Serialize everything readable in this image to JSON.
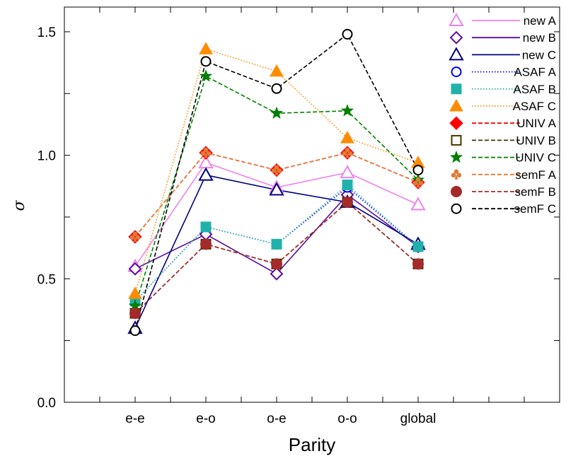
{
  "chart_data": {
    "type": "line",
    "title": "",
    "xlabel": "Parity",
    "ylabel": "σ",
    "categories": [
      "e-e",
      "e-o",
      "o-e",
      "o-o",
      "global"
    ],
    "ylim": [
      0.0,
      1.6
    ],
    "yticks": [
      0.0,
      0.5,
      1.0,
      1.5
    ],
    "ytick_labels": [
      "0.0",
      "0.5",
      "1.0",
      "1.5"
    ],
    "legend_position": "top-right",
    "series": [
      {
        "name": "new A",
        "color": "#ee82ee",
        "dash": "solid",
        "marker": "triangle-open",
        "values": [
          0.55,
          0.97,
          0.87,
          0.93,
          0.8
        ]
      },
      {
        "name": "new B",
        "color": "#5b0d9e",
        "dash": "solid",
        "marker": "diamond-open",
        "values": [
          0.54,
          0.68,
          0.52,
          0.84,
          0.63
        ]
      },
      {
        "name": "new C",
        "color": "#000080",
        "dash": "solid",
        "marker": "triangle-open",
        "values": [
          0.3,
          0.92,
          0.86,
          0.81,
          0.64
        ]
      },
      {
        "name": "ASAF A",
        "color": "#0000ff",
        "dash": "dotted",
        "marker": "circle-open",
        "values": [
          0.41,
          0.71,
          0.64,
          0.87,
          0.63
        ]
      },
      {
        "name": "ASAF B",
        "color": "#20b2aa",
        "dash": "dotted",
        "marker": "square-filled",
        "values": [
          0.41,
          0.71,
          0.64,
          0.88,
          0.63
        ]
      },
      {
        "name": "ASAF C",
        "color": "#ff8c00",
        "dash": "dotted",
        "marker": "triangle-filled",
        "values": [
          0.44,
          1.43,
          1.34,
          1.07,
          0.97
        ]
      },
      {
        "name": "UNIV A",
        "color": "#ff0000",
        "dash": "dashed",
        "marker": "diamond-filled",
        "values": [
          0.67,
          1.01,
          0.94,
          1.01,
          0.89
        ]
      },
      {
        "name": "UNIV B",
        "color": "#4d3300",
        "dash": "dashed",
        "marker": "square-open",
        "values": [
          0.36,
          0.64,
          0.56,
          0.81,
          0.56
        ]
      },
      {
        "name": "UNIV C",
        "color": "#008000",
        "dash": "dashed",
        "marker": "star",
        "values": [
          0.39,
          1.32,
          1.17,
          1.18,
          0.9
        ]
      },
      {
        "name": "semF A",
        "color": "#e07b39",
        "dash": "dashed",
        "marker": "club",
        "values": [
          0.67,
          1.01,
          0.94,
          1.01,
          0.89
        ]
      },
      {
        "name": "semF B",
        "color": "#a52a2a",
        "dash": "dashed",
        "marker": "circle-filled",
        "values": [
          0.36,
          0.64,
          0.56,
          0.81,
          0.56
        ]
      },
      {
        "name": "semF C",
        "color": "#000000",
        "dash": "dashed",
        "marker": "circle-open",
        "values": [
          0.29,
          1.38,
          1.27,
          1.49,
          0.94
        ]
      }
    ]
  }
}
